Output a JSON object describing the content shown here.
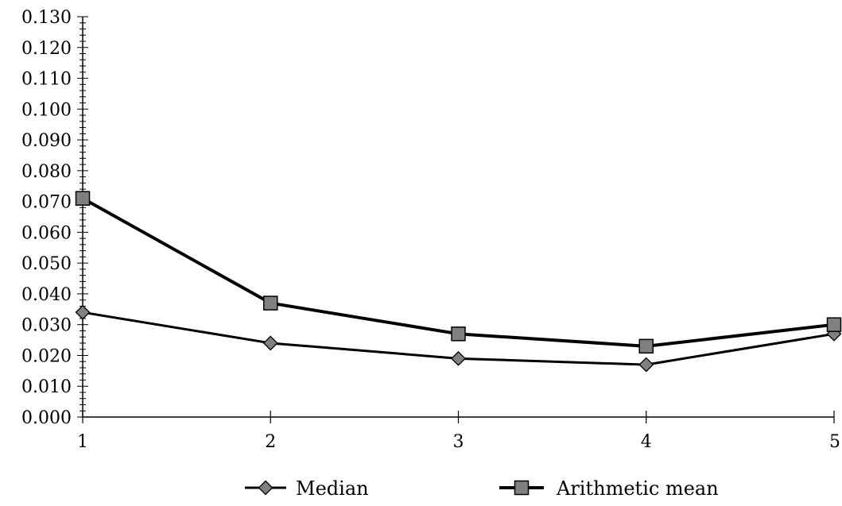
{
  "chart_data": {
    "type": "line",
    "x": [
      1,
      2,
      3,
      4,
      5
    ],
    "x_tick_labels": [
      "1",
      "2",
      "3",
      "4",
      "5"
    ],
    "y_tick_labels": [
      "0.000",
      "0.010",
      "0.020",
      "0.030",
      "0.040",
      "0.050",
      "0.060",
      "0.070",
      "0.080",
      "0.090",
      "0.100",
      "0.110",
      "0.120",
      "0.130"
    ],
    "ylim": [
      0,
      0.13
    ],
    "xlim": [
      1,
      5
    ],
    "y_major_step": 0.01,
    "y_minor_step": 0.002,
    "grid": false,
    "legend_position": "bottom",
    "series": [
      {
        "name": "Median",
        "marker": "diamond",
        "values": [
          0.034,
          0.024,
          0.019,
          0.017,
          0.027
        ],
        "line_color": "#000000",
        "marker_fill": "#808080"
      },
      {
        "name": "Arithmetic mean",
        "marker": "square",
        "values": [
          0.071,
          0.037,
          0.027,
          0.023,
          0.03
        ],
        "line_color": "#000000",
        "marker_fill": "#808080"
      }
    ]
  }
}
